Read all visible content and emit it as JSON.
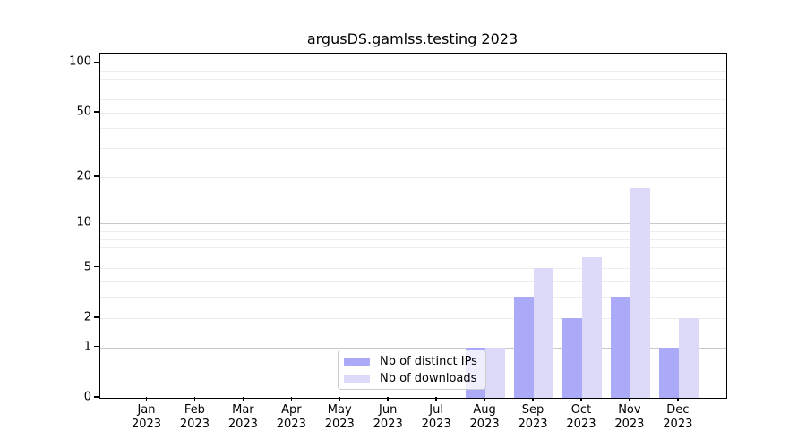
{
  "colors": {
    "background": "#ffffff",
    "ips_bar": "#abaaf8",
    "downloads_bar": "#dcdaf8",
    "grid_minor": "#ededed",
    "grid_major": "#c9c9c9",
    "axis": "#000000",
    "legend_border": "#cccccc"
  },
  "chart_data": {
    "type": "bar",
    "title": "argusDS.gamlss.testing 2023",
    "categories": [
      "Jan 2023",
      "Feb 2023",
      "Mar 2023",
      "Apr 2023",
      "May 2023",
      "Jun 2023",
      "Jul 2023",
      "Aug 2023",
      "Sep 2023",
      "Oct 2023",
      "Nov 2023",
      "Dec 2023"
    ],
    "month_labels": [
      "Jan",
      "Feb",
      "Mar",
      "Apr",
      "May",
      "Jun",
      "Jul",
      "Aug",
      "Sep",
      "Oct",
      "Nov",
      "Dec"
    ],
    "year_label": "2023",
    "series": [
      {
        "name": "Nb of distinct IPs",
        "color": "#abaaf8",
        "values": [
          0,
          0,
          0,
          0,
          0,
          0,
          0,
          1,
          3,
          2,
          3,
          1
        ]
      },
      {
        "name": "Nb of downloads",
        "color": "#dcdaf8",
        "values": [
          0,
          0,
          0,
          0,
          0,
          0,
          0,
          1,
          5,
          6,
          17,
          2
        ]
      }
    ],
    "y_axis": {
      "scale": "log1p",
      "tick_labels": [
        0,
        1,
        2,
        5,
        10,
        20,
        50,
        100
      ],
      "ylim": [
        0,
        100
      ],
      "gridlines_major": [
        1,
        10,
        100
      ],
      "gridlines_minor": [
        2,
        3,
        4,
        5,
        6,
        7,
        8,
        9,
        20,
        30,
        40,
        50,
        60,
        70,
        80,
        90
      ]
    },
    "x_axis": {
      "label_line2": "2023"
    },
    "legend": {
      "position": "lower center",
      "entries": [
        "Nb of distinct IPs",
        "Nb of downloads"
      ]
    },
    "grid": "horizontal only"
  }
}
